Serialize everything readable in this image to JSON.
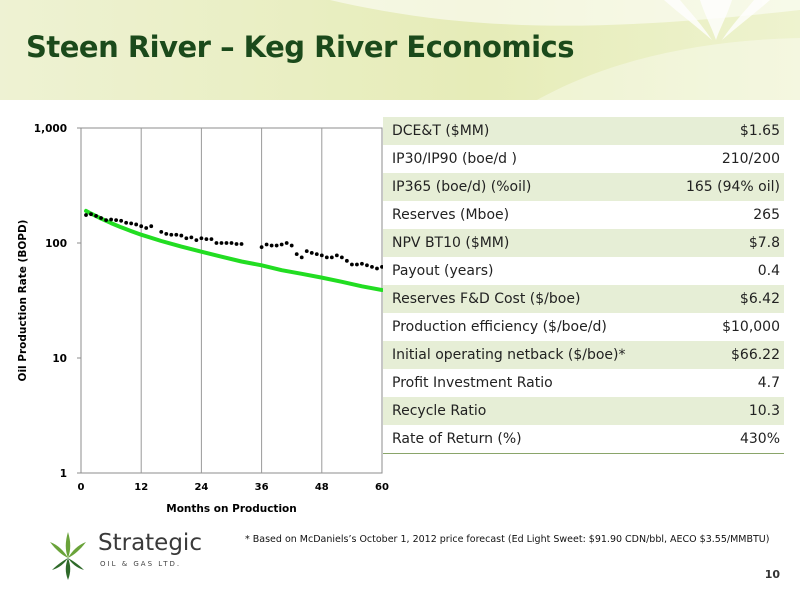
{
  "page": {
    "title": "Steen River – Keg River Economics",
    "footnote": "* Based on McDaniels’s October 1, 2012 price forecast (Ed Light Sweet: $91.90 CDN/bbl, AECO $3.55/MMBTU)",
    "page_number": "10"
  },
  "logo": {
    "name": "Strategic",
    "subtitle": "OIL & GAS LTD."
  },
  "colors": {
    "title": "#1b4a1b",
    "curve": "#22dd22",
    "points": "#000000",
    "band": "#e6eed6"
  },
  "metrics": [
    {
      "label": "DCE&T ($MM)",
      "value": "$1.65"
    },
    {
      "label": "IP30/IP90 (boe/d )",
      "value": "210/200"
    },
    {
      "label": "IP365 (boe/d) (%oil)",
      "value": "165 (94% oil)"
    },
    {
      "label": "Reserves (Mboe)",
      "value": "265"
    },
    {
      "label": "NPV BT10 ($MM)",
      "value": "$7.8"
    },
    {
      "label": "Payout  (years)",
      "value": "0.4"
    },
    {
      "label": "Reserves  F&D Cost ($/boe)",
      "value": "$6.42"
    },
    {
      "label": "Production efficiency ($/boe/d)",
      "value": "$10,000"
    },
    {
      "label": "Initial operating netback ($/boe)*",
      "value": "$66.22"
    },
    {
      "label": "Profit Investment Ratio",
      "value": "4.7"
    },
    {
      "label": "Recycle Ratio",
      "value": "10.3"
    },
    {
      "label": "Rate of Return (%)",
      "value": "430%"
    }
  ],
  "chart_data": {
    "type": "scatter",
    "xlabel": "Months on Production",
    "ylabel": "Oil Production Rate (BOPD)",
    "xlim": [
      0,
      60
    ],
    "ylim": [
      1,
      1000
    ],
    "y_scale": "log",
    "grid": "vertical",
    "x_ticks": [
      "0",
      "12",
      "24",
      "36",
      "48",
      "60"
    ],
    "y_ticks": [
      "1",
      "10",
      "100",
      "1,000"
    ],
    "series": [
      {
        "kind": "points",
        "x": [
          1,
          2,
          3,
          4,
          5,
          6,
          7,
          8,
          9,
          10,
          11,
          12,
          13,
          14,
          16,
          17,
          18,
          19,
          20,
          21,
          22,
          23,
          24,
          25,
          26,
          27,
          28,
          29,
          30,
          31,
          32,
          36,
          37,
          38,
          39,
          40,
          41,
          42,
          43,
          44,
          45,
          46,
          47,
          48,
          49,
          50,
          51,
          52,
          53,
          54,
          55,
          56,
          57,
          58,
          59,
          60
        ],
        "y": [
          175,
          178,
          172,
          165,
          158,
          160,
          158,
          156,
          150,
          148,
          145,
          140,
          135,
          140,
          125,
          120,
          118,
          118,
          116,
          110,
          112,
          106,
          110,
          108,
          108,
          100,
          100,
          100,
          100,
          98,
          98,
          92,
          97,
          95,
          95,
          97,
          100,
          95,
          80,
          75,
          85,
          82,
          80,
          78,
          75,
          75,
          78,
          75,
          70,
          65,
          65,
          66,
          64,
          62,
          60,
          62
        ]
      },
      {
        "kind": "fitted-curve",
        "x": [
          1,
          2,
          4,
          6,
          8,
          10,
          12,
          16,
          20,
          24,
          28,
          32,
          36,
          40,
          44,
          48,
          52,
          56,
          60
        ],
        "y": [
          190,
          180,
          163,
          149,
          137,
          127,
          118,
          104,
          93,
          84,
          76,
          69,
          64,
          58,
          54,
          50,
          46,
          42,
          39
        ]
      }
    ]
  }
}
